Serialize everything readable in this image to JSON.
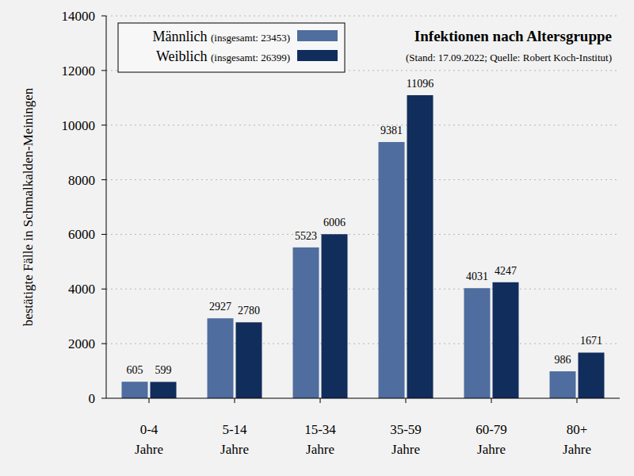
{
  "chart_data": {
    "type": "bar",
    "title": "Infektionen nach Altersgruppe",
    "subtitle": "(Stand: 17.09.2022; Quelle: Robert Koch-Institut)",
    "y_label": "bestätigte Fälle in Schmalkalden-Meiningen",
    "categories": [
      "0-4 Jahre",
      "5-14 Jahre",
      "15-34 Jahre",
      "35-59 Jahre",
      "60-79 Jahre",
      "80+ Jahre"
    ],
    "series": [
      {
        "name": "Männlich (insgesamt: 23453)",
        "color": "#4f6d9e",
        "values": [
          605,
          2927,
          5523,
          9381,
          4031,
          986
        ]
      },
      {
        "name": "Weiblich (insgesamt: 26399)",
        "color": "#112d5c",
        "values": [
          599,
          2780,
          6006,
          11096,
          4247,
          1671
        ]
      }
    ],
    "ylim": [
      0,
      14000
    ],
    "yticks": [
      0,
      2000,
      4000,
      6000,
      8000,
      10000,
      12000,
      14000
    ],
    "grid": true,
    "legend": "upper left",
    "data_labels": true
  }
}
